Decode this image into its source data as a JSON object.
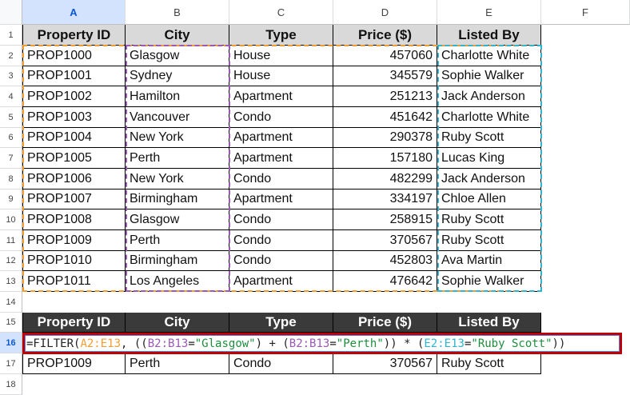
{
  "columns": [
    "A",
    "B",
    "C",
    "D",
    "E",
    "F"
  ],
  "rows": [
    "1",
    "2",
    "3",
    "4",
    "5",
    "6",
    "7",
    "8",
    "9",
    "10",
    "11",
    "12",
    "13",
    "14",
    "15",
    "16",
    "17",
    "18"
  ],
  "headers": [
    "Property ID",
    "City",
    "Type",
    "Price ($)",
    "Listed By"
  ],
  "data": [
    [
      "PROP1000",
      "Glasgow",
      "House",
      "457060",
      "Charlotte White"
    ],
    [
      "PROP1001",
      "Sydney",
      "House",
      "345579",
      "Sophie Walker"
    ],
    [
      "PROP1002",
      "Hamilton",
      "Apartment",
      "251213",
      "Jack Anderson"
    ],
    [
      "PROP1003",
      "Vancouver",
      "Condo",
      "451642",
      "Charlotte White"
    ],
    [
      "PROP1004",
      "New York",
      "Apartment",
      "290378",
      "Ruby Scott"
    ],
    [
      "PROP1005",
      "Perth",
      "Apartment",
      "157180",
      "Lucas King"
    ],
    [
      "PROP1006",
      "New York",
      "Condo",
      "482299",
      "Jack Anderson"
    ],
    [
      "PROP1007",
      "Birmingham",
      "Apartment",
      "334197",
      "Chloe Allen"
    ],
    [
      "PROP1008",
      "Glasgow",
      "Condo",
      "258915",
      "Ruby Scott"
    ],
    [
      "PROP1009",
      "Perth",
      "Condo",
      "370567",
      "Ruby Scott"
    ],
    [
      "PROP1010",
      "Birmingham",
      "Condo",
      "452803",
      "Ava Martin"
    ],
    [
      "PROP1011",
      "Los Angeles",
      "Apartment",
      "476642",
      "Sophie Walker"
    ]
  ],
  "result_row": [
    "PROP1009",
    "Perth",
    "Condo",
    "370567",
    "Ruby Scott"
  ],
  "formula": {
    "parts": [
      {
        "t": "=FILTER(",
        "c": "#222"
      },
      {
        "t": "A2:E13",
        "c": "#f39c32"
      },
      {
        "t": ", ((",
        "c": "#222"
      },
      {
        "t": "B2:B13",
        "c": "#9b59b6"
      },
      {
        "t": "=",
        "c": "#222"
      },
      {
        "t": "\"Glasgow\"",
        "c": "#1e8e3e"
      },
      {
        "t": ") + (",
        "c": "#222"
      },
      {
        "t": "B2:B13",
        "c": "#9b59b6"
      },
      {
        "t": "=",
        "c": "#222"
      },
      {
        "t": "\"Perth\"",
        "c": "#1e8e3e"
      },
      {
        "t": ")) * (",
        "c": "#222"
      },
      {
        "t": "E2:E13",
        "c": "#2fb5d0"
      },
      {
        "t": "=",
        "c": "#222"
      },
      {
        "t": "\"Ruby Scott\"",
        "c": "#1e8e3e"
      },
      {
        "t": "))",
        "c": "#222"
      }
    ]
  },
  "colors": {
    "range_a": "#f39c32",
    "range_b": "#9b59b6",
    "range_e": "#2fb5d0",
    "highlight": "#c00000"
  }
}
